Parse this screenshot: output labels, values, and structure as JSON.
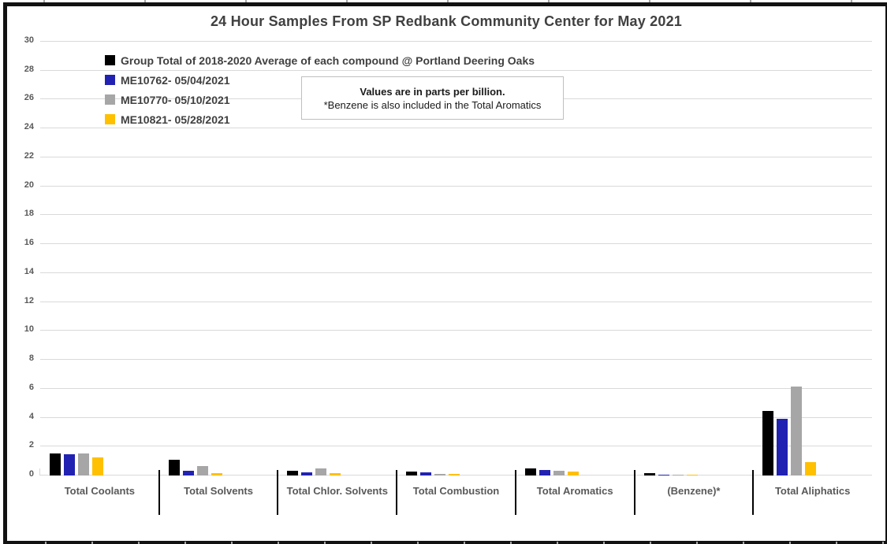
{
  "title": "24 Hour Samples From SP Redbank Community Center for May 2021",
  "annotation": {
    "line1": "Values are in parts per billion.",
    "line2": "*Benzene is also included in the Total Aromatics"
  },
  "colors": {
    "series_black": "#000000",
    "series_blue": "#2222b2",
    "series_gray": "#a6a6a6",
    "series_yellow": "#ffc000",
    "gridline": "#d9d9d9",
    "text_dark": "#404040",
    "text_axis": "#595959"
  },
  "chart_data": {
    "type": "bar",
    "title": "24 Hour Samples From SP Redbank Community Center for May 2021",
    "unit": "parts per billion",
    "categories": [
      "Total Coolants",
      "Total Solvents",
      "Total Chlor. Solvents",
      "Total Combustion",
      "Total Aromatics",
      "(Benzene)*",
      "Total Aliphatics"
    ],
    "series": [
      {
        "name": "Group Total of 2018-2020 Average of each compound @ Portland Deering Oaks",
        "color": "#000000",
        "values": [
          1.55,
          1.1,
          0.35,
          0.25,
          0.5,
          0.15,
          4.45
        ]
      },
      {
        "name": "ME10762- 05/04/2021",
        "color": "#2222b2",
        "values": [
          1.45,
          0.35,
          0.2,
          0.2,
          0.4,
          0.06,
          3.9
        ]
      },
      {
        "name": "ME10770- 05/10/2021",
        "color": "#a6a6a6",
        "values": [
          1.5,
          0.65,
          0.5,
          0.1,
          0.35,
          0.05,
          6.15
        ]
      },
      {
        "name": "ME10821- 05/28/2021",
        "color": "#ffc000",
        "values": [
          1.25,
          0.15,
          0.15,
          0.1,
          0.25,
          0.02,
          0.95
        ]
      }
    ],
    "xlabel": "",
    "ylabel": "",
    "ylim": [
      0,
      30
    ],
    "yticks": [
      0,
      2,
      4,
      6,
      8,
      10,
      12,
      14,
      16,
      18,
      20,
      22,
      24,
      26,
      28,
      30
    ],
    "grid": true,
    "legend_position": "top-left"
  }
}
